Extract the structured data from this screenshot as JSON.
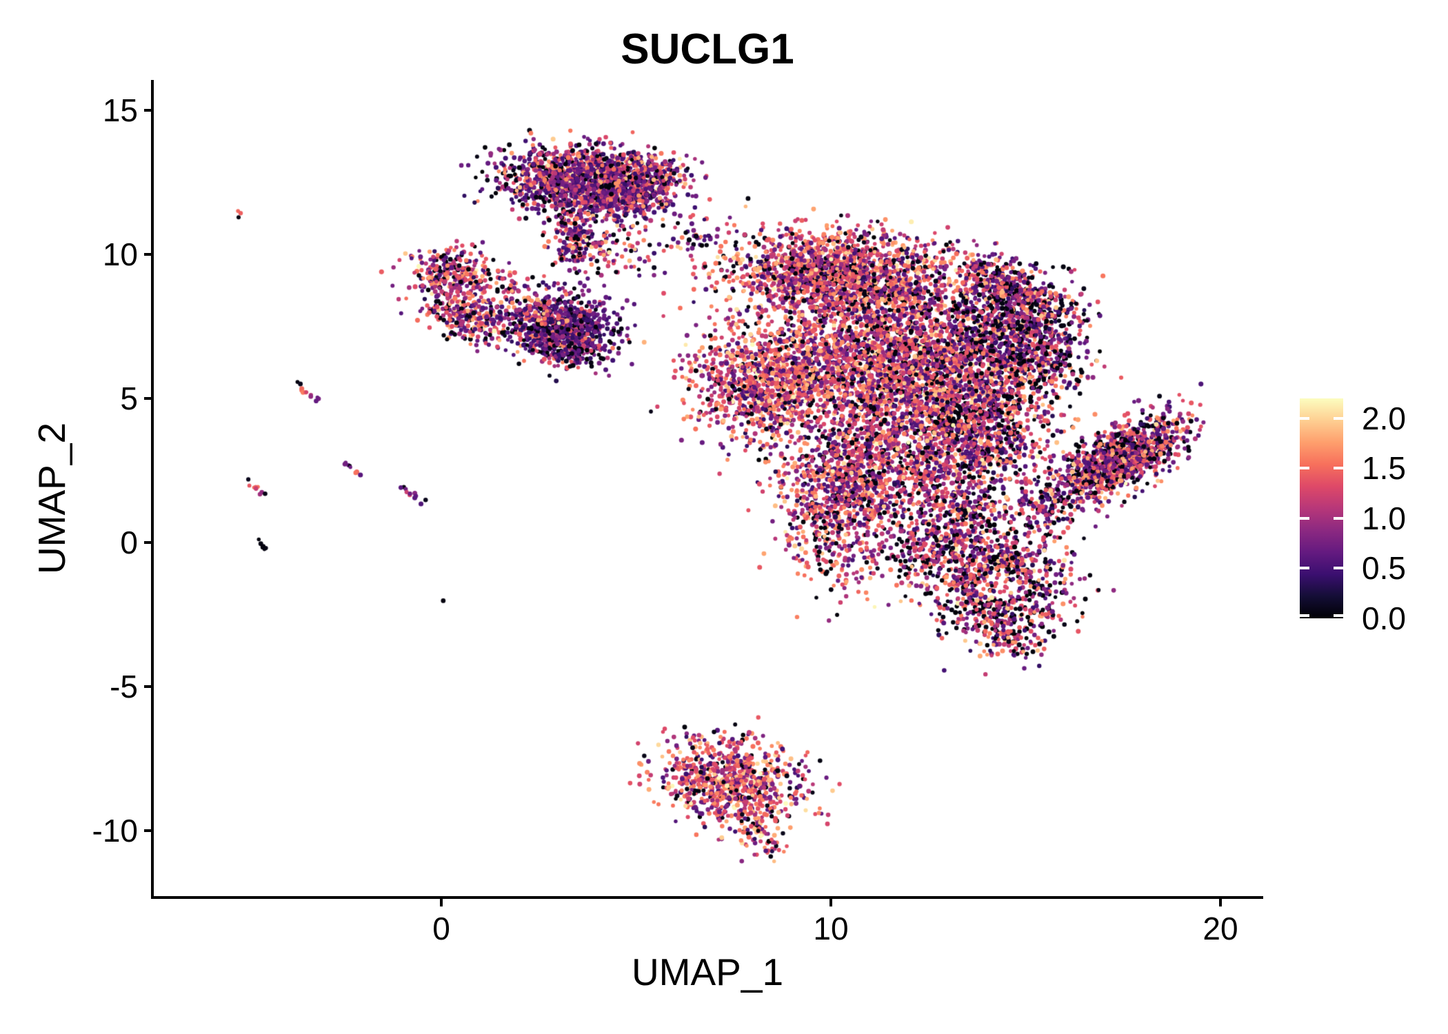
{
  "chart_data": {
    "type": "scatter",
    "title": "SUCLG1",
    "xlabel": "UMAP_1",
    "ylabel": "UMAP_2",
    "xlim": [
      -7.4,
      21.1
    ],
    "ylim": [
      -12.3,
      15.9
    ],
    "x_ticks": [
      0,
      10,
      20
    ],
    "x_tick_labels": [
      "0",
      "10",
      "20"
    ],
    "y_ticks": [
      15,
      10,
      5,
      0,
      -5,
      -10
    ],
    "y_tick_labels": [
      "15",
      "10",
      "5",
      "0",
      "-5",
      "-10"
    ],
    "grid": false,
    "legend_position": "right",
    "background_color": "#ffffff",
    "axis_color": "#000000",
    "colorbar": {
      "tick_labels": [
        "2.0",
        "1.5",
        "1.0",
        "0.5",
        "0.0"
      ],
      "tick_values": [
        2.0,
        1.5,
        1.0,
        0.5,
        0.0
      ],
      "vmin": 0.0,
      "vmax": 2.2,
      "colormap": "magma"
    },
    "colormap_stops": [
      [
        0.0,
        0,
        0,
        4
      ],
      [
        0.1,
        20,
        14,
        54
      ],
      [
        0.2,
        59,
        15,
        112
      ],
      [
        0.3,
        100,
        26,
        128
      ],
      [
        0.4,
        140,
        41,
        129
      ],
      [
        0.5,
        183,
        55,
        121
      ],
      [
        0.6,
        222,
        73,
        104
      ],
      [
        0.7,
        247,
        112,
        92
      ],
      [
        0.8,
        254,
        159,
        109
      ],
      [
        0.9,
        254,
        207,
        146
      ],
      [
        1.0,
        252,
        253,
        191
      ]
    ],
    "seed": 42,
    "point_radius_px": [
      2.7,
      3.6
    ],
    "color_mixes": {
      "purpleheavy": [
        [
          0.13,
          0,
          0.1
        ],
        [
          0.3,
          0.3,
          0.8
        ],
        [
          0.2,
          0.5,
          0.95
        ],
        [
          0.2,
          0.95,
          1.45
        ],
        [
          0.1,
          1.3,
          1.7
        ],
        [
          0.06,
          1.55,
          1.95
        ],
        [
          0.01,
          1.9,
          2.2
        ]
      ],
      "darkcluster": [
        [
          0.2,
          0,
          0.1
        ],
        [
          0.45,
          0.3,
          0.75
        ],
        [
          0.18,
          0.5,
          0.9
        ],
        [
          0.1,
          0.95,
          1.4
        ],
        [
          0.04,
          1.3,
          1.65
        ],
        [
          0.03,
          1.55,
          1.9
        ]
      ],
      "mixed": [
        [
          0.15,
          0,
          0.1
        ],
        [
          0.12,
          0.3,
          0.8
        ],
        [
          0.16,
          0.5,
          0.95
        ],
        [
          0.27,
          0.95,
          1.45
        ],
        [
          0.17,
          1.3,
          1.7
        ],
        [
          0.11,
          1.55,
          1.95
        ],
        [
          0.02,
          1.9,
          2.2
        ]
      ],
      "warm": [
        [
          0.09,
          0,
          0.1
        ],
        [
          0.08,
          0.3,
          0.8
        ],
        [
          0.14,
          0.5,
          0.95
        ],
        [
          0.26,
          0.95,
          1.45
        ],
        [
          0.23,
          1.3,
          1.7
        ],
        [
          0.16,
          1.55,
          1.95
        ],
        [
          0.04,
          1.9,
          2.2
        ]
      ],
      "warmband": [
        [
          0.13,
          0,
          0.1
        ],
        [
          0.1,
          0.3,
          0.8
        ],
        [
          0.15,
          0.5,
          0.95
        ],
        [
          0.28,
          0.95,
          1.45
        ],
        [
          0.19,
          1.3,
          1.7
        ],
        [
          0.12,
          1.55,
          1.95
        ],
        [
          0.03,
          1.9,
          2.2
        ]
      ],
      "blackish": [
        [
          0.32,
          0,
          0.1
        ],
        [
          0.2,
          0.3,
          0.8
        ],
        [
          0.15,
          0.5,
          0.95
        ],
        [
          0.17,
          0.95,
          1.45
        ],
        [
          0.09,
          1.3,
          1.7
        ],
        [
          0.06,
          1.55,
          1.95
        ],
        [
          0.01,
          1.9,
          2.2
        ]
      ],
      "blackwarm": [
        [
          0.26,
          0,
          0.1
        ],
        [
          0.12,
          0.3,
          0.8
        ],
        [
          0.15,
          0.5,
          0.95
        ],
        [
          0.24,
          0.95,
          1.45
        ],
        [
          0.13,
          1.3,
          1.7
        ],
        [
          0.08,
          1.55,
          1.95
        ],
        [
          0.02,
          1.9,
          2.2
        ]
      ],
      "wing": [
        [
          0.2,
          0,
          0.1
        ],
        [
          0.18,
          0.3,
          0.8
        ],
        [
          0.18,
          0.5,
          0.95
        ],
        [
          0.22,
          0.95,
          1.45
        ],
        [
          0.12,
          1.3,
          1.7
        ],
        [
          0.09,
          1.55,
          1.95
        ],
        [
          0.01,
          1.9,
          2.2
        ]
      ]
    },
    "clusters": [
      {
        "name": "top-lobe",
        "cx": 3.7,
        "cy": 12.5,
        "sx": 1.0,
        "sy": 0.6,
        "rot": -5,
        "n": 1500,
        "mix": "purpleheavy"
      },
      {
        "name": "top-lobe-right-bump",
        "cx": 5.35,
        "cy": 12.75,
        "sx": 0.45,
        "sy": 0.35,
        "rot": 0,
        "n": 180,
        "mix": "purpleheavy"
      },
      {
        "name": "top-lobe-lower-right",
        "cx": 5.0,
        "cy": 11.85,
        "sx": 0.5,
        "sy": 0.35,
        "rot": 0,
        "n": 120,
        "mix": "purpleheavy"
      },
      {
        "name": "top-lobe-trail",
        "cx": 3.4,
        "cy": 10.5,
        "sx": 0.32,
        "sy": 0.6,
        "rot": 0,
        "n": 160,
        "mix": "purpleheavy"
      },
      {
        "name": "trail-right-sparse",
        "cx": 4.6,
        "cy": 10.1,
        "sx": 0.6,
        "sy": 0.45,
        "rot": 0,
        "n": 60,
        "mix": "mixed"
      },
      {
        "name": "gap-sparse",
        "cx": 6.7,
        "cy": 10.6,
        "sx": 0.55,
        "sy": 0.45,
        "rot": 0,
        "n": 50,
        "mix": "blackish"
      },
      {
        "name": "left-hook-upper",
        "cx": 0.25,
        "cy": 9.35,
        "sx": 0.5,
        "sy": 0.42,
        "rot": 0,
        "n": 260,
        "mix": "mixed"
      },
      {
        "name": "left-hook-lower",
        "cx": 0.65,
        "cy": 7.85,
        "sx": 0.55,
        "sy": 0.4,
        "rot": -15,
        "n": 260,
        "mix": "mixed"
      },
      {
        "name": "left-hook-bridge",
        "cx": 1.55,
        "cy": 9.05,
        "sx": 0.45,
        "sy": 0.3,
        "rot": 0,
        "n": 50,
        "mix": "mixed"
      },
      {
        "name": "dark-lobe",
        "cx": 3.05,
        "cy": 7.45,
        "sx": 0.7,
        "sy": 0.55,
        "rot": -10,
        "n": 820,
        "mix": "darkcluster"
      },
      {
        "name": "dark-lobe-left-edge",
        "cx": 2.45,
        "cy": 7.95,
        "sx": 0.3,
        "sy": 0.3,
        "rot": 0,
        "n": 80,
        "mix": "mixed"
      },
      {
        "name": "dark-lobe-tail",
        "cx": 3.35,
        "cy": 6.45,
        "sx": 0.4,
        "sy": 0.25,
        "rot": -20,
        "n": 70,
        "mix": "darkcluster"
      },
      {
        "name": "upper-band",
        "cx": 10.2,
        "cy": 9.3,
        "sx": 1.45,
        "sy": 0.75,
        "rot": -3,
        "n": 1700,
        "mix": "warmband"
      },
      {
        "name": "core",
        "cx": 11.7,
        "cy": 6.2,
        "sx": 1.8,
        "sy": 1.35,
        "rot": 0,
        "n": 3000,
        "mix": "mixed"
      },
      {
        "name": "core-left-bulge",
        "cx": 8.2,
        "cy": 5.5,
        "sx": 0.85,
        "sy": 1.0,
        "rot": 0,
        "n": 800,
        "mix": "warm"
      },
      {
        "name": "core-right-lobe",
        "cx": 14.6,
        "cy": 7.6,
        "sx": 0.9,
        "sy": 0.95,
        "rot": 0,
        "n": 650,
        "mix": "blackish"
      },
      {
        "name": "right-hook-arc",
        "cx": 14.55,
        "cy": 8.9,
        "sx": 0.85,
        "sy": 0.3,
        "rot": -35,
        "n": 280,
        "mix": "wing"
      },
      {
        "name": "right-sparse",
        "cx": 15.4,
        "cy": 6.6,
        "sx": 0.7,
        "sy": 0.85,
        "rot": 0,
        "n": 260,
        "mix": "blackish"
      },
      {
        "name": "core-lower-right",
        "cx": 13.9,
        "cy": 4.0,
        "sx": 0.9,
        "sy": 0.9,
        "rot": 0,
        "n": 700,
        "mix": "wing"
      },
      {
        "name": "lower-neck",
        "cx": 10.2,
        "cy": 1.1,
        "sx": 0.75,
        "sy": 1.3,
        "rot": 0,
        "n": 650,
        "mix": "mixed"
      },
      {
        "name": "neck-bridge",
        "cx": 11.5,
        "cy": 2.8,
        "sx": 1.4,
        "sy": 0.95,
        "rot": 0,
        "n": 850,
        "mix": "mixed"
      },
      {
        "name": "lower-band-right",
        "cx": 13.2,
        "cy": 1.1,
        "sx": 0.85,
        "sy": 0.8,
        "rot": 0,
        "n": 400,
        "mix": "wing"
      },
      {
        "name": "ring-neck",
        "cx": 12.5,
        "cy": -0.5,
        "sx": 0.75,
        "sy": 0.45,
        "rot": 0,
        "n": 150,
        "mix": "blackwarm"
      },
      {
        "name": "lower-right-ring",
        "cx": 14.3,
        "cy": -1.5,
        "sx": 0.9,
        "sy": 1.05,
        "rot": 0,
        "n": 900,
        "mix": "blackwarm",
        "hole": 0.5
      },
      {
        "name": "ring-tail",
        "cx": 14.55,
        "cy": -3.1,
        "sx": 0.5,
        "sy": 0.3,
        "rot": -60,
        "n": 90,
        "mix": "blackwarm"
      },
      {
        "name": "wing",
        "cx": 17.4,
        "cy": 2.85,
        "sx": 1.05,
        "sy": 0.45,
        "rot": 38,
        "n": 1150,
        "mix": "wing"
      },
      {
        "name": "wing-tail",
        "cx": 15.6,
        "cy": 1.2,
        "sx": 0.4,
        "sy": 0.45,
        "rot": 0,
        "n": 90,
        "mix": "wing"
      },
      {
        "name": "bottom-lobe",
        "cx": 7.4,
        "cy": -8.3,
        "sx": 0.95,
        "sy": 0.7,
        "rot": -15,
        "n": 800,
        "mix": "warm"
      },
      {
        "name": "bottom-lobe-tail",
        "cx": 8.1,
        "cy": -10.0,
        "sx": 0.28,
        "sy": 0.5,
        "rot": 20,
        "n": 80,
        "mix": "warm"
      }
    ],
    "streaks": [
      {
        "name": "streak-upper-left",
        "x1": -3.72,
        "y1": 5.52,
        "x2": -3.18,
        "y2": 4.92,
        "n": 12,
        "vals": [
          0.05,
          0.1,
          1.55,
          1.5,
          1.6,
          1.45,
          1.25,
          1.05,
          0.9,
          0.78,
          0.7,
          0.65
        ]
      },
      {
        "name": "streak-mid-blob",
        "x1": -2.5,
        "y1": 2.75,
        "x2": -2.05,
        "y2": 2.35,
        "n": 9,
        "vals": [
          0.72,
          0.75,
          0.68,
          0.05,
          0.7,
          1.5,
          1.45,
          1.55,
          0.6
        ]
      },
      {
        "name": "streak-far-left",
        "x1": -4.95,
        "y1": 2.1,
        "x2": -4.55,
        "y2": 1.68,
        "n": 9,
        "vals": [
          0.1,
          1.4,
          1.5,
          1.55,
          1.45,
          1.2,
          1.0,
          0.9,
          0.08
        ]
      },
      {
        "name": "streak-center-left",
        "x1": -1.05,
        "y1": 1.92,
        "x2": -0.45,
        "y2": 1.38,
        "n": 11,
        "vals": [
          0.05,
          0.6,
          0.72,
          1.2,
          1.3,
          0.85,
          0.72,
          0.66,
          0.6,
          0.55,
          0.1
        ]
      },
      {
        "name": "streak-black-blob",
        "x1": -4.72,
        "y1": 0.02,
        "x2": -4.52,
        "y2": -0.22,
        "n": 6,
        "vals": [
          0.04,
          0.06,
          0.05,
          0.08,
          0.05,
          0.06
        ]
      },
      {
        "name": "bottom-right-stragglers",
        "x1": 8.75,
        "y1": -7.9,
        "x2": 9.15,
        "y2": -8.9,
        "n": 6,
        "vals": [
          0.05,
          0.08,
          0.7,
          0.1,
          1.45,
          0.65
        ]
      },
      {
        "name": "top-left-pair",
        "x1": -5.28,
        "y1": 11.5,
        "x2": -5.12,
        "y2": 11.32,
        "n": 3,
        "vals": [
          1.5,
          1.45,
          0.05
        ]
      }
    ],
    "singles": [
      {
        "x": 0.05,
        "y": -2.02,
        "v": 0.05
      },
      {
        "x": 9.4,
        "y": -7.28,
        "v": 1.5
      }
    ]
  }
}
